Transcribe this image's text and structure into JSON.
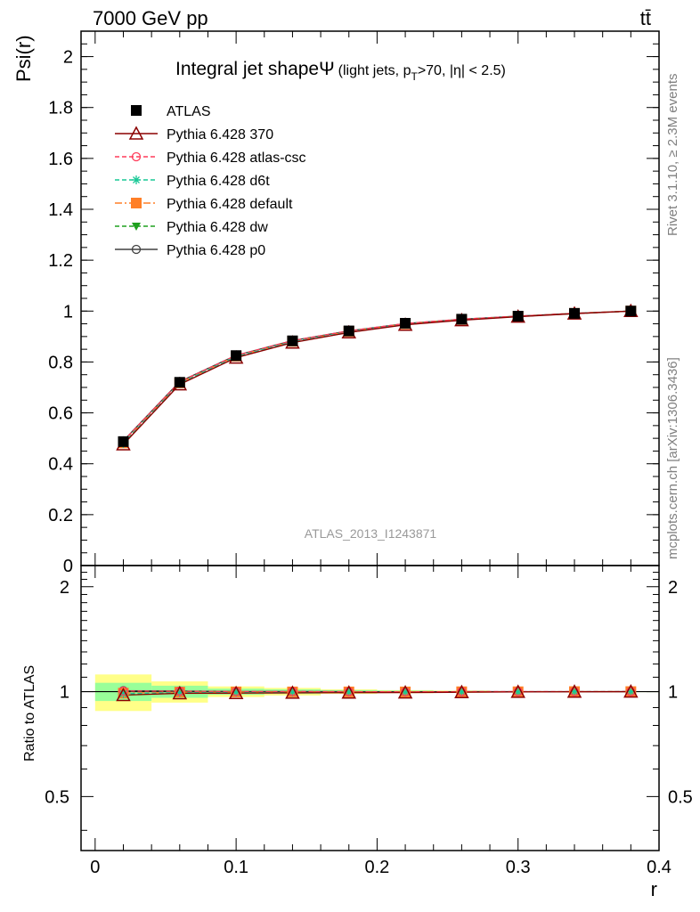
{
  "header": {
    "left_title": "7000 GeV pp",
    "right_title": "tt̄"
  },
  "side_labels": {
    "rivet": "Rivet 3.1.10, ≥ 2.3M events",
    "mcplots": "mcplots.cern.ch [arXiv:1306.3436]"
  },
  "watermark": "ATLAS_2013_I1243871",
  "plot_title": {
    "main": "Integral jet shape",
    "psi": "Ψ",
    "pre": "(light jets, p",
    "sub": "T",
    "post": ">70, |η| < 2.5)"
  },
  "chart_data": [
    {
      "type": "line",
      "title": "Integral jet shape Ψ (light jets, pT>70, |η| < 2.5)",
      "xlabel": "",
      "ylabel": "Psi(r)",
      "xlim": [
        -0.01,
        0.4
      ],
      "ylim": [
        0,
        2.1
      ],
      "yticks": [
        "0",
        "0.2",
        "0.4",
        "0.6",
        "0.8",
        "1",
        "1.2",
        "1.4",
        "1.6",
        "1.8",
        "2"
      ],
      "legend_position": "top-left",
      "x": [
        0.02,
        0.06,
        0.1,
        0.14,
        0.18,
        0.22,
        0.26,
        0.3,
        0.34,
        0.38
      ],
      "series": [
        {
          "name": "ATLAS",
          "color": "#000000",
          "marker": "square",
          "line": "none",
          "values": [
            0.487,
            0.72,
            0.825,
            0.883,
            0.922,
            0.952,
            0.968,
            0.98,
            0.991,
            1.0
          ]
        },
        {
          "name": "Pythia 6.428 370",
          "color": "#8b0000",
          "marker": "triangle-open",
          "line": "solid",
          "values": [
            0.476,
            0.712,
            0.817,
            0.876,
            0.916,
            0.946,
            0.964,
            0.978,
            0.99,
            1.0
          ]
        },
        {
          "name": "Pythia 6.428 atlas-csc",
          "color": "#ff3c5a",
          "marker": "circle-open",
          "line": "dashed",
          "values": [
            0.489,
            0.722,
            0.826,
            0.884,
            0.922,
            0.951,
            0.968,
            0.98,
            0.991,
            1.0
          ]
        },
        {
          "name": "Pythia 6.428 d6t",
          "color": "#19c896",
          "marker": "star",
          "line": "dashed",
          "values": [
            0.48,
            0.716,
            0.822,
            0.88,
            0.92,
            0.949,
            0.967,
            0.979,
            0.991,
            1.0
          ]
        },
        {
          "name": "Pythia 6.428 default",
          "color": "#ff7f27",
          "marker": "square",
          "line": "dashdot",
          "values": [
            0.482,
            0.718,
            0.823,
            0.881,
            0.92,
            0.95,
            0.967,
            0.979,
            0.991,
            1.0
          ]
        },
        {
          "name": "Pythia 6.428 dw",
          "color": "#1ea01e",
          "marker": "triangle-down",
          "line": "dashed",
          "values": [
            0.479,
            0.715,
            0.821,
            0.879,
            0.919,
            0.949,
            0.966,
            0.979,
            0.99,
            1.0
          ]
        },
        {
          "name": "Pythia 6.428 p0",
          "color": "#404040",
          "marker": "circle-open",
          "line": "solid",
          "values": [
            0.49,
            0.723,
            0.826,
            0.884,
            0.922,
            0.951,
            0.968,
            0.98,
            0.991,
            1.0
          ]
        }
      ]
    },
    {
      "type": "line",
      "title": "",
      "xlabel": "r",
      "ylabel": "Ratio to ATLAS",
      "xlim": [
        -0.01,
        0.4
      ],
      "ylim": [
        0.35,
        2.3
      ],
      "yscale": "log",
      "yticks": [
        "0.5",
        "1",
        "2"
      ],
      "xticks": [
        "0",
        "0.1",
        "0.2",
        "0.3",
        "0.4"
      ],
      "x": [
        0.02,
        0.06,
        0.1,
        0.14,
        0.18,
        0.22,
        0.26,
        0.3,
        0.34,
        0.38
      ],
      "bands": {
        "bin_edges": [
          0.0,
          0.04,
          0.08,
          0.12,
          0.16,
          0.2,
          0.24,
          0.28,
          0.32,
          0.36,
          0.4
        ],
        "stat": {
          "color": "#99ff99",
          "lower": [
            0.94,
            0.96,
            0.98,
            0.985,
            0.99,
            0.993,
            0.996,
            0.998,
            0.999,
            1.0
          ],
          "upper": [
            1.06,
            1.04,
            1.02,
            1.015,
            1.01,
            1.007,
            1.004,
            1.002,
            1.001,
            1.0
          ]
        },
        "total": {
          "color": "#ffff88",
          "lower": [
            0.88,
            0.93,
            0.965,
            0.975,
            0.985,
            0.99,
            0.993,
            0.997,
            0.999,
            1.0
          ],
          "upper": [
            1.12,
            1.07,
            1.035,
            1.025,
            1.015,
            1.01,
            1.007,
            1.003,
            1.001,
            1.0
          ]
        }
      },
      "series": [
        {
          "name": "Pythia 6.428 370",
          "values": [
            0.977,
            0.989,
            0.99,
            0.992,
            0.993,
            0.994,
            0.996,
            0.998,
            0.999,
            1.0
          ]
        },
        {
          "name": "Pythia 6.428 atlas-csc",
          "values": [
            1.004,
            1.003,
            1.001,
            1.001,
            1.0,
            0.999,
            1.0,
            1.0,
            1.0,
            1.0
          ]
        },
        {
          "name": "Pythia 6.428 d6t",
          "values": [
            0.986,
            0.994,
            0.996,
            0.997,
            0.998,
            0.997,
            0.999,
            0.999,
            1.0,
            1.0
          ]
        },
        {
          "name": "Pythia 6.428 default",
          "values": [
            0.99,
            0.997,
            0.998,
            0.998,
            0.998,
            0.998,
            0.999,
            0.999,
            1.0,
            1.0
          ]
        },
        {
          "name": "Pythia 6.428 dw",
          "values": [
            0.984,
            0.993,
            0.995,
            0.995,
            0.997,
            0.997,
            0.998,
            0.999,
            0.999,
            1.0
          ]
        },
        {
          "name": "Pythia 6.428 p0",
          "values": [
            1.006,
            1.004,
            1.001,
            1.001,
            1.0,
            0.999,
            1.0,
            1.0,
            1.0,
            1.0
          ]
        }
      ]
    }
  ]
}
